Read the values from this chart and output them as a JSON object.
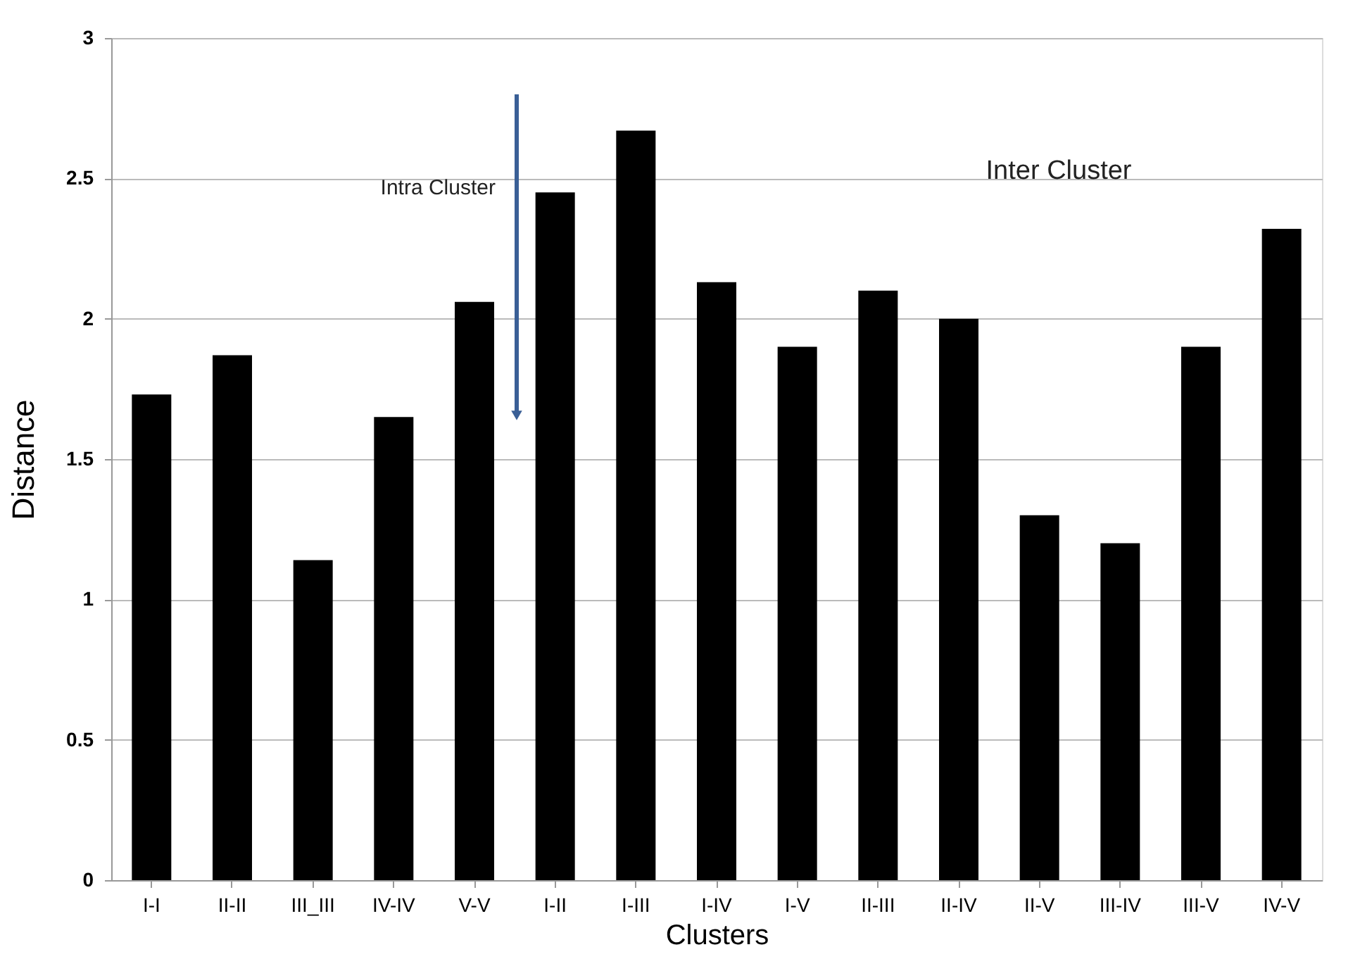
{
  "chart_data": {
    "type": "bar",
    "categories": [
      "I-I",
      "II-II",
      "III_III",
      "IV-IV",
      "V-V",
      "I-II",
      "I-III",
      "I-IV",
      "I-V",
      "II-III",
      "II-IV",
      "II-V",
      "III-IV",
      "III-V",
      "IV-V"
    ],
    "values": [
      1.73,
      1.87,
      1.14,
      1.65,
      2.06,
      2.45,
      2.67,
      2.13,
      1.9,
      2.1,
      2.0,
      1.3,
      1.2,
      1.9,
      2.32
    ],
    "color": "#000000",
    "xlabel": "Clusters",
    "ylabel": "Distance",
    "ylim": [
      0,
      3
    ],
    "yticks": [
      0,
      0.5,
      1,
      1.5,
      2,
      2.5,
      3
    ],
    "grid": "y",
    "annotations": [
      "Intra Cluster",
      "Inter Cluster"
    ]
  }
}
